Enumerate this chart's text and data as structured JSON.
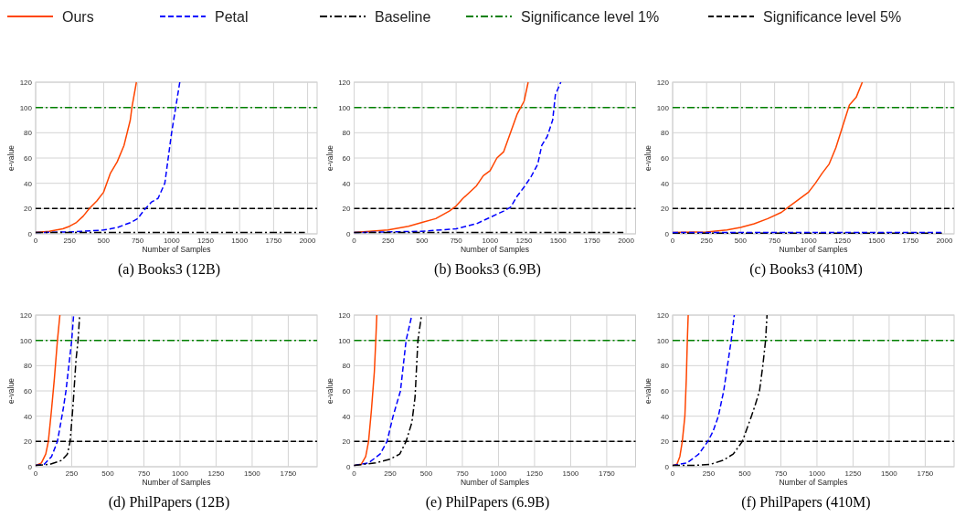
{
  "chart_data": [
    {
      "type": "line",
      "title": "(a) Books3 (12B)",
      "xlabel": "Number of Samples",
      "ylabel": "e-value",
      "xlim": [
        0,
        2070
      ],
      "xticks": [
        0,
        250,
        500,
        750,
        1000,
        1250,
        1500,
        1750,
        2000
      ],
      "ylim": [
        0,
        120
      ],
      "yticks": [
        0,
        20,
        40,
        60,
        80,
        100,
        120
      ],
      "grid": true,
      "legend": "top",
      "ref_lines": [
        {
          "axis": "y",
          "value": 100,
          "label": "Significance level 1%",
          "color": "#008000",
          "line_style": "dashdot"
        },
        {
          "axis": "y",
          "value": 20,
          "label": "Significance level 5%",
          "color": "#000000",
          "line_style": "dashed"
        }
      ],
      "series": [
        {
          "name": "Ours",
          "color": "#ff4500",
          "line_style": "solid",
          "x": [
            0,
            100,
            200,
            250,
            300,
            350,
            395,
            450,
            500,
            550,
            600,
            650,
            696,
            708,
            741
          ],
          "values": [
            1,
            2,
            4,
            6,
            9,
            14,
            20,
            26,
            33,
            48,
            57,
            70,
            90,
            100,
            120
          ]
        },
        {
          "name": "Petal",
          "color": "#0000ff",
          "line_style": "dashed",
          "x": [
            0,
            250,
            500,
            600,
            700,
            750,
            800,
            850,
            900,
            950,
            1000,
            1030,
            1060
          ],
          "values": [
            1,
            1.5,
            3,
            5,
            9,
            12,
            19,
            25,
            28,
            40,
            80,
            100,
            120
          ]
        },
        {
          "name": "Baseline",
          "color": "#000000",
          "line_style": "dashdot",
          "x": [
            0,
            500,
            1000,
            1500,
            1980
          ],
          "values": [
            1,
            1,
            1,
            1,
            1
          ]
        }
      ]
    },
    {
      "type": "line",
      "title": "(b) Books3 (6.9B)",
      "xlabel": "Number of Samples",
      "ylabel": "e-value",
      "xlim": [
        0,
        2070
      ],
      "xticks": [
        0,
        250,
        500,
        750,
        1000,
        1250,
        1500,
        1750,
        2000
      ],
      "ylim": [
        0,
        120
      ],
      "yticks": [
        0,
        20,
        40,
        60,
        80,
        100,
        120
      ],
      "grid": true,
      "ref_lines": [
        {
          "axis": "y",
          "value": 100,
          "color": "#008000",
          "line_style": "dashdot"
        },
        {
          "axis": "y",
          "value": 20,
          "color": "#000000",
          "line_style": "dashed"
        }
      ],
      "series": [
        {
          "color": "#ff4500",
          "line_style": "solid",
          "x": [
            0,
            250,
            400,
            500,
            600,
            700,
            750,
            800,
            900,
            950,
            1000,
            1050,
            1100,
            1150,
            1200,
            1250,
            1280
          ],
          "values": [
            1,
            3,
            6,
            9,
            12,
            18,
            22,
            28,
            38,
            46,
            50,
            60,
            65,
            80,
            95,
            105,
            120
          ]
        },
        {
          "color": "#0000ff",
          "line_style": "dashed",
          "x": [
            0,
            500,
            750,
            900,
            1000,
            1100,
            1150,
            1200,
            1250,
            1300,
            1350,
            1380,
            1420,
            1460,
            1480,
            1520
          ],
          "values": [
            1,
            2,
            4,
            8,
            13,
            18,
            21,
            30,
            37,
            45,
            55,
            70,
            77,
            90,
            110,
            120
          ]
        },
        {
          "color": "#000000",
          "line_style": "dashdot",
          "x": [
            0,
            500,
            1000,
            1500,
            1980
          ],
          "values": [
            1,
            1,
            1,
            1,
            1
          ]
        }
      ]
    },
    {
      "type": "line",
      "title": "(c) Books3 (410M)",
      "xlabel": "Number of Samples",
      "ylabel": "e-value",
      "xlim": [
        0,
        2070
      ],
      "xticks": [
        0,
        250,
        500,
        750,
        1000,
        1250,
        1500,
        1750,
        2000
      ],
      "ylim": [
        0,
        120
      ],
      "yticks": [
        0,
        20,
        40,
        60,
        80,
        100,
        120
      ],
      "grid": true,
      "ref_lines": [
        {
          "axis": "y",
          "value": 100,
          "color": "#008000",
          "line_style": "dashdot"
        },
        {
          "axis": "y",
          "value": 20,
          "color": "#000000",
          "line_style": "dashed"
        }
      ],
      "series": [
        {
          "color": "#ff4500",
          "line_style": "solid",
          "x": [
            0,
            250,
            400,
            500,
            600,
            700,
            800,
            850,
            900,
            1000,
            1050,
            1100,
            1150,
            1200,
            1250,
            1300,
            1350,
            1395
          ],
          "values": [
            1,
            1.5,
            3,
            5,
            8,
            12,
            17,
            21,
            25,
            33,
            40,
            48,
            55,
            68,
            85,
            102,
            108,
            120
          ]
        },
        {
          "color": "#000000",
          "line_style": "dashdot",
          "x": [
            0,
            500,
            1000,
            1500,
            1980
          ],
          "values": [
            0.5,
            0.5,
            0.5,
            0.5,
            0.5
          ]
        },
        {
          "color": "#0000ff",
          "line_style": "dashed",
          "x": [
            0,
            500,
            1000,
            1500,
            1980
          ],
          "values": [
            1,
            1,
            1,
            1,
            1
          ]
        }
      ]
    },
    {
      "type": "line",
      "title": "(d) PhilPapers (12B)",
      "xlabel": "Number of Samples",
      "ylabel": "e-value",
      "xlim": [
        0,
        1950
      ],
      "xticks": [
        0,
        250,
        500,
        750,
        1000,
        1250,
        1500,
        1750
      ],
      "ylim": [
        0,
        120
      ],
      "yticks": [
        0,
        20,
        40,
        60,
        80,
        100,
        120
      ],
      "grid": true,
      "ref_lines": [
        {
          "axis": "y",
          "value": 100,
          "color": "#008000",
          "line_style": "dashdot"
        },
        {
          "axis": "y",
          "value": 20,
          "color": "#000000",
          "line_style": "dashed"
        }
      ],
      "series": [
        {
          "color": "#ff4500",
          "line_style": "solid",
          "x": [
            0,
            40,
            70,
            88,
            110,
            130,
            151,
            168
          ],
          "values": [
            1,
            3,
            10,
            20,
            45,
            70,
            100,
            120
          ]
        },
        {
          "color": "#0000ff",
          "line_style": "dashed",
          "x": [
            0,
            60,
            110,
            151,
            190,
            210,
            250,
            263
          ],
          "values": [
            1,
            2,
            8,
            20,
            45,
            60,
            100,
            120
          ]
        },
        {
          "color": "#000000",
          "line_style": "dashdot",
          "x": [
            0,
            100,
            180,
            220,
            239,
            260,
            280,
            294,
            305
          ],
          "values": [
            1,
            2,
            5,
            10,
            20,
            50,
            85,
            100,
            120
          ]
        }
      ]
    },
    {
      "type": "line",
      "title": "(e) PhilPapers (6.9B)",
      "xlabel": "Number of Samples",
      "ylabel": "e-value",
      "xlim": [
        0,
        1950
      ],
      "xticks": [
        0,
        250,
        500,
        750,
        1000,
        1250,
        1500,
        1750
      ],
      "ylim": [
        0,
        120
      ],
      "yticks": [
        0,
        20,
        40,
        60,
        80,
        100,
        120
      ],
      "grid": true,
      "ref_lines": [
        {
          "axis": "y",
          "value": 100,
          "color": "#008000",
          "line_style": "dashdot"
        },
        {
          "axis": "y",
          "value": 20,
          "color": "#000000",
          "line_style": "dashed"
        }
      ],
      "series": [
        {
          "color": "#ff4500",
          "line_style": "solid",
          "x": [
            0,
            50,
            80,
            100,
            120,
            140,
            150,
            157
          ],
          "values": [
            1,
            2,
            8,
            20,
            45,
            75,
            100,
            120
          ]
        },
        {
          "color": "#0000ff",
          "line_style": "dashed",
          "x": [
            0,
            100,
            180,
            228,
            270,
            321,
            360,
            400
          ],
          "values": [
            1,
            3,
            10,
            20,
            40,
            60,
            100,
            120
          ]
        },
        {
          "color": "#000000",
          "line_style": "dashdot",
          "x": [
            0,
            150,
            250,
            316,
            360,
            400,
            422,
            442,
            467
          ],
          "values": [
            1,
            3,
            6,
            10,
            20,
            35,
            55,
            100,
            120
          ]
        }
      ]
    },
    {
      "type": "line",
      "title": "(f) PhilPapers (410M)",
      "xlabel": "Number of Samples",
      "ylabel": "e-value",
      "xlim": [
        0,
        1950
      ],
      "xticks": [
        0,
        250,
        500,
        750,
        1000,
        1250,
        1500,
        1750
      ],
      "ylim": [
        0,
        120
      ],
      "yticks": [
        0,
        20,
        40,
        60,
        80,
        100,
        120
      ],
      "grid": true,
      "ref_lines": [
        {
          "axis": "y",
          "value": 100,
          "color": "#008000",
          "line_style": "dashdot"
        },
        {
          "axis": "y",
          "value": 20,
          "color": "#000000",
          "line_style": "dashed"
        }
      ],
      "series": [
        {
          "color": "#ff4500",
          "line_style": "solid",
          "x": [
            0,
            30,
            50,
            67,
            85,
            95,
            102,
            108
          ],
          "values": [
            1,
            2,
            8,
            20,
            40,
            70,
            100,
            120
          ]
        },
        {
          "color": "#0000ff",
          "line_style": "dashed",
          "x": [
            0,
            100,
            181,
            244,
            280,
            317,
            354,
            380,
            406,
            427
          ],
          "values": [
            1,
            3,
            10,
            20,
            28,
            40,
            60,
            80,
            100,
            120
          ]
        },
        {
          "color": "#000000",
          "line_style": "dashdot",
          "x": [
            0,
            150,
            265,
            348,
            420,
            483,
            546,
            570,
            602,
            625,
            644,
            654
          ],
          "values": [
            1,
            1,
            2,
            5,
            10,
            20,
            40,
            48,
            60,
            80,
            100,
            120
          ]
        }
      ]
    }
  ]
}
